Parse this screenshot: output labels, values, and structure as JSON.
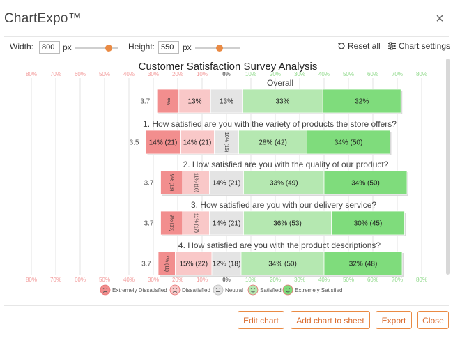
{
  "app": {
    "title": "ChartExpo™",
    "close_icon": "×"
  },
  "toolbar": {
    "width_label": "Width:",
    "width_value": "800",
    "width_unit": "px",
    "height_label": "Height:",
    "height_value": "550",
    "height_unit": "px",
    "width_slider_level": 0.78,
    "height_slider_level": 0.55,
    "reset_label": "Reset all",
    "settings_label": "Chart settings"
  },
  "footer": {
    "edit_chart": "Edit chart",
    "add_to_sheet": "Add chart to sheet",
    "export": "Export",
    "close": "Close"
  },
  "colors": {
    "extremely_dissatisfied": "#f28e8e",
    "dissatisfied": "#f9c8c8",
    "neutral": "#e4e4e4",
    "satisfied": "#b5e8b1",
    "extremely_satisfied": "#7fdc7c",
    "accent": "#ea8a43"
  },
  "chart_data": {
    "type": "bar",
    "subtype": "diverging-stacked-bar",
    "title": "Customer Satisfaction Survey Analysis",
    "axis_ticks": [
      "80%",
      "70%",
      "60%",
      "50%",
      "40%",
      "30%",
      "20%",
      "10%",
      "0%",
      "10%",
      "20%",
      "30%",
      "40%",
      "50%",
      "60%",
      "70%",
      "80%"
    ],
    "tick_values": [
      -80,
      -70,
      -60,
      -50,
      -40,
      -30,
      -20,
      -10,
      0,
      10,
      20,
      30,
      40,
      50,
      60,
      70,
      80
    ],
    "xlim": [
      -80,
      80
    ],
    "grid": true,
    "legend_position": "bottom",
    "legend": [
      "Extremely Dissatisfied",
      "Dissatisfied",
      "Neutral",
      "Satisfied",
      "Extremely Satisfied"
    ],
    "legend_icons": [
      "sad-face-icon",
      "sad-face-icon",
      "neutral-face-icon",
      "smile-face-icon",
      "smile-face-icon"
    ],
    "groups": [
      {
        "title": "Overall",
        "score": "3.7",
        "values": [
          9,
          13,
          13,
          33,
          32
        ],
        "labels": [
          "9%",
          "13%",
          "13%",
          "33%",
          "32%"
        ],
        "rotated": [
          true,
          false,
          false,
          false,
          false
        ]
      },
      {
        "title": "1. How satisfied are you with the variety of products the store offers?",
        "score": "3.5",
        "values": [
          14,
          14,
          10,
          28,
          34
        ],
        "labels": [
          "14% (21)",
          "14% (21)",
          "10% (15)",
          "28% (42)",
          "34% (50)"
        ],
        "rotated": [
          false,
          false,
          true,
          false,
          false
        ]
      },
      {
        "title": "2. How satisfied are you with the quality of our product?",
        "score": "3.7",
        "values": [
          9,
          11,
          14,
          33,
          34
        ],
        "labels": [
          "9% (13)",
          "11% (16)",
          "14% (21)",
          "33% (49)",
          "34% (50)"
        ],
        "rotated": [
          true,
          true,
          false,
          false,
          false
        ]
      },
      {
        "title": "3. How satisfied are you with our delivery service?",
        "score": "3.7",
        "values": [
          9,
          11,
          14,
          36,
          30
        ],
        "labels": [
          "9% (13)",
          "11% (17)",
          "14% (21)",
          "36% (53)",
          "30% (45)"
        ],
        "rotated": [
          true,
          true,
          false,
          false,
          false
        ]
      },
      {
        "title": "4. How satisfied are you with the product descriptions?",
        "score": "3.7",
        "values": [
          7,
          15,
          12,
          34,
          32
        ],
        "labels": [
          "7% (11)",
          "15% (22)",
          "12% (18)",
          "34% (50)",
          "32% (48)"
        ],
        "rotated": [
          true,
          false,
          false,
          false,
          false
        ]
      }
    ]
  }
}
